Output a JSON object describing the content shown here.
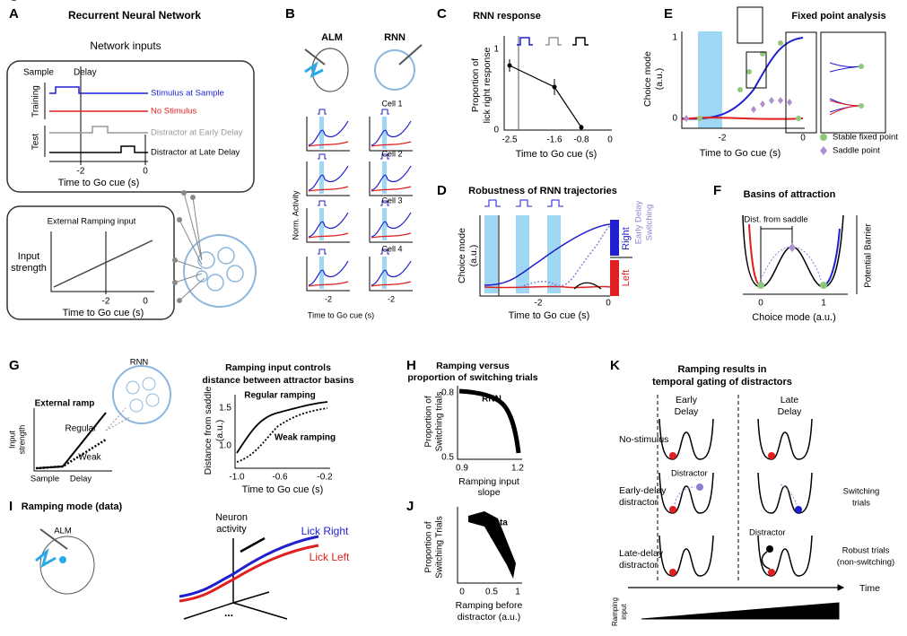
{
  "A": {
    "label": "A",
    "title": "Recurrent Neural Network",
    "subtitle": "Network inputs",
    "sample": "Sample",
    "delay": "Delay",
    "training": "Training",
    "test": "Test",
    "legend": [
      "Stimulus at Sample",
      "No Stimulus",
      "Distractor at Early Delay",
      "Distractor at Late Delay"
    ],
    "xticks": [
      "-2",
      "0"
    ],
    "xlabel": "Time to Go cue (s)",
    "ramp_title": "External Ramping input",
    "ramp_ylabel": [
      "Input",
      "strength"
    ],
    "ramp_xticks": [
      "-2",
      "0"
    ],
    "ramp_xlabel": "Time to Go cue (s)"
  },
  "B": {
    "label": "B",
    "alm": "ALM",
    "rnn": "RNN",
    "cells": [
      "Cell 1",
      "Cell 2",
      "Cell 3",
      "Cell 4"
    ],
    "ylabel": "Norm. Activity",
    "xticks": [
      "-2",
      "-2"
    ],
    "xlabel": "Time to Go cue (s)"
  },
  "C": {
    "label": "C",
    "title": "RNN response",
    "ylabel": [
      "Proportion of",
      "lick right response"
    ],
    "yticks": [
      "1",
      "0"
    ],
    "xticks": [
      "-2.5",
      "-1.6",
      "-0.8",
      "0"
    ],
    "xlabel": "Time to Go cue (s)"
  },
  "D": {
    "label": "D",
    "title": "Robustness of RNN trajectories",
    "ylabel": [
      "Choice mode",
      "(a.u.)"
    ],
    "right": "Right",
    "left": "Left",
    "switching": [
      "Early Delay",
      "Switching"
    ],
    "xticks": [
      "-2",
      "0"
    ],
    "xlabel": "Time to Go cue (s)"
  },
  "E": {
    "label": "E",
    "title": "Fixed point analysis",
    "ylabel": [
      "Choice mode",
      "(a.u.)"
    ],
    "yticks": [
      "1",
      "0"
    ],
    "xticks": [
      "-2",
      "0"
    ],
    "xlabel": "Time to Go cue (s)",
    "legend": [
      "Stable fixed point",
      "Saddle point"
    ]
  },
  "F": {
    "label": "F",
    "title": "Basins of attraction",
    "dist": "Dist. from saddle",
    "ylabel": "Potential Barrier",
    "xticks": [
      "0",
      "1"
    ],
    "xlabel": "Choice mode (a.u.)"
  },
  "G": {
    "label": "G",
    "rnn": "RNN",
    "ramp": "External ramp",
    "regular": "Regular",
    "weak": "Weak",
    "ylabel": [
      "Input",
      "strength"
    ],
    "sample": "Sample",
    "delay": "Delay",
    "title": [
      "Ramping input controls",
      "distance between attractor basins"
    ],
    "regular_ramping": "Regular ramping",
    "weak_ramping": "Weak ramping",
    "chart_ylabel": [
      "Distance from saddle",
      "(a.u.)"
    ],
    "yticks": [
      "1.5",
      "1.0"
    ],
    "xticks": [
      "-1.0",
      "-0.6",
      "-0.2"
    ],
    "xlabel": "Time to Go cue (s)"
  },
  "H": {
    "label": "H",
    "title": [
      "Ramping versus",
      "proportion of switching trials"
    ],
    "tag": "RNN",
    "ylabel": [
      "Proportion of",
      "Switching trials"
    ],
    "yticks": [
      "0.8",
      "0.5"
    ],
    "xticks": [
      "0.9",
      "1.2"
    ],
    "xlabel": [
      "Ramping input",
      "slope"
    ]
  },
  "I": {
    "label": "I",
    "title": "Ramping mode (data)",
    "alm": "ALM",
    "neuron": [
      "Neuron",
      "activity"
    ],
    "lick_right": "Lick Right",
    "lick_left": "Lick Left",
    "dots": "..."
  },
  "J": {
    "label": "J",
    "tag": "Data",
    "ylabel": [
      "Proportion of",
      "Switching Trials"
    ],
    "xticks": [
      "0",
      "0.5",
      "1"
    ],
    "xlabel": [
      "Ramping before",
      "distractor (a.u.)"
    ]
  },
  "K": {
    "label": "K",
    "title": [
      "Ramping results in",
      "temporal gating of distractors"
    ],
    "early": [
      "Early",
      "Delay"
    ],
    "late": [
      "Late",
      "Delay"
    ],
    "rows": [
      "No-stimulus",
      "Early-delay",
      "distractor",
      "Late-delay",
      "distractor"
    ],
    "distractor": [
      "Distractor",
      "Distractor"
    ],
    "switching": [
      "Switching",
      "trials"
    ],
    "robust": [
      "Robust trials",
      "(non-switching)"
    ],
    "time": "Time",
    "ramping": [
      "Ramping",
      "input"
    ]
  }
}
